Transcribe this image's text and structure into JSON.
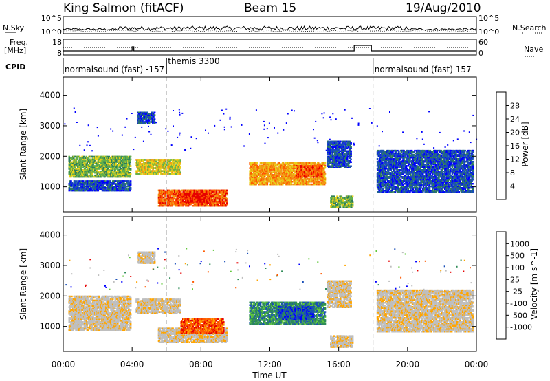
{
  "header": {
    "station": "King Salmon (fitACF)",
    "beam": "Beam 15",
    "date": "19/Aug/2010"
  },
  "strip_labels": {
    "nsky": "N.Sky",
    "nsearch": "N.Search",
    "freq_line1": "Freq.",
    "freq_line2": "[MHz]",
    "nave": "Nave",
    "cpid": "CPID"
  },
  "strip_ticks": {
    "noise_left": [
      "10^5",
      "10^0"
    ],
    "noise_right": [
      "10^5",
      "10^0"
    ],
    "freq_left": [
      "18",
      "8"
    ],
    "nave_right": [
      "60",
      "0"
    ]
  },
  "cpid_segments": [
    {
      "label": "normalsound (fast) -157",
      "start_hour": 0,
      "end_hour": 6
    },
    {
      "label": "themis 3300",
      "start_hour": 6,
      "end_hour": 18
    },
    {
      "label": "normalsound (fast) 157",
      "start_hour": 18,
      "end_hour": 24
    }
  ],
  "time_axis": {
    "label": "Time UT",
    "ticks": [
      "00:00",
      "04:00",
      "08:00",
      "12:00",
      "16:00",
      "20:00",
      "00:00"
    ]
  },
  "chart_data": [
    {
      "type": "heatmap",
      "quantity": "Power",
      "ylabel": "Slant Range [km]",
      "yticks": [
        "1000",
        "2000",
        "3000",
        "4000"
      ],
      "ylim": [
        180,
        4600
      ],
      "xlim_hours": [
        0,
        24
      ],
      "colorbar_label": "Power [dB]",
      "colorbar_ticks": [
        "28",
        "24",
        "20",
        "16",
        "12",
        "8",
        "4"
      ],
      "colorbar_colors": [
        "#0000ff",
        "#1a4fb8",
        "#2e7d5a",
        "#62b04a",
        "#e8d21a",
        "#f09a14",
        "#ff5a00",
        "#e60000"
      ],
      "echo_regions": [
        {
          "t0": 0.3,
          "t1": 3.9,
          "r0": 1300,
          "r1": 2000,
          "level": 3
        },
        {
          "t0": 0.3,
          "t1": 3.9,
          "r0": 850,
          "r1": 1200,
          "level": 1
        },
        {
          "t0": 4.2,
          "t1": 6.8,
          "r0": 1400,
          "r1": 1900,
          "level": 4
        },
        {
          "t0": 4.3,
          "t1": 5.3,
          "r0": 3050,
          "r1": 3450,
          "level": 1
        },
        {
          "t0": 5.5,
          "t1": 9.5,
          "r0": 350,
          "r1": 900,
          "level": 6
        },
        {
          "t0": 6.8,
          "t1": 8.3,
          "r0": 480,
          "r1": 780,
          "level": 7
        },
        {
          "t0": 10.8,
          "t1": 15.2,
          "r0": 1050,
          "r1": 1800,
          "level": 5
        },
        {
          "t0": 13.5,
          "t1": 15.0,
          "r0": 1300,
          "r1": 1700,
          "level": 6
        },
        {
          "t0": 15.3,
          "t1": 16.7,
          "r0": 1600,
          "r1": 2500,
          "level": 1
        },
        {
          "t0": 15.5,
          "t1": 16.8,
          "r0": 300,
          "r1": 700,
          "level": 3
        },
        {
          "t0": 18.2,
          "t1": 23.8,
          "r0": 800,
          "r1": 2200,
          "level": 1
        }
      ]
    },
    {
      "type": "heatmap",
      "quantity": "Velocity",
      "ylabel": "Slant Range [km]",
      "yticks": [
        "1000",
        "2000",
        "3000",
        "4000"
      ],
      "ylim": [
        180,
        4600
      ],
      "xlim_hours": [
        0,
        24
      ],
      "colorbar_label": "Velocity [m s^-1]",
      "colorbar_ticks": [
        "1000",
        "500",
        "100",
        "25",
        "-25",
        "-100",
        "-500",
        "-1000"
      ],
      "colorbar_colors": [
        "#e60000",
        "#ff5a00",
        "#ffa500",
        "#bebebe",
        "#bebebe",
        "#62c83c",
        "#2e8b57",
        "#1a4fb8",
        "#0000ff"
      ],
      "echo_regions": [
        {
          "t0": 0.3,
          "t1": 3.9,
          "r0": 850,
          "r1": 2000,
          "level": 3
        },
        {
          "t0": 4.2,
          "t1": 6.8,
          "r0": 1400,
          "r1": 1900,
          "level": 3
        },
        {
          "t0": 4.3,
          "t1": 5.3,
          "r0": 3050,
          "r1": 3450,
          "level": 3
        },
        {
          "t0": 5.5,
          "t1": 9.5,
          "r0": 450,
          "r1": 950,
          "level": 3
        },
        {
          "t0": 6.8,
          "t1": 9.3,
          "r0": 750,
          "r1": 1250,
          "level": 1
        },
        {
          "t0": 10.8,
          "t1": 15.2,
          "r0": 1050,
          "r1": 1800,
          "level": 6
        },
        {
          "t0": 12.5,
          "t1": 14.5,
          "r0": 1200,
          "r1": 1650,
          "level": 7
        },
        {
          "t0": 15.3,
          "t1": 16.7,
          "r0": 1600,
          "r1": 2500,
          "level": 3
        },
        {
          "t0": 15.5,
          "t1": 16.8,
          "r0": 300,
          "r1": 700,
          "level": 3
        },
        {
          "t0": 18.2,
          "t1": 23.8,
          "r0": 800,
          "r1": 2200,
          "level": 3
        }
      ]
    }
  ]
}
